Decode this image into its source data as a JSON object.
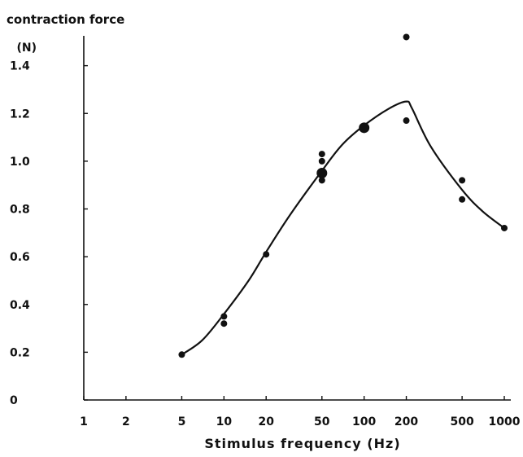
{
  "chart_data": {
    "type": "scatter",
    "title": "",
    "ylabel": "contraction force",
    "yunit": "(N)",
    "xlabel": "Stimulus frequency (Hz)",
    "xscale": "log",
    "xlim": [
      1,
      1000
    ],
    "ylim": [
      0,
      1.6
    ],
    "xticks": [
      1,
      2,
      5,
      10,
      20,
      50,
      100,
      200,
      500,
      1000
    ],
    "xtick_labels": [
      "1",
      "2",
      "5",
      "10",
      "20",
      "50",
      "100",
      "200",
      "500",
      "1000"
    ],
    "yticks": [
      0,
      0.2,
      0.4,
      0.6,
      0.8,
      1.0,
      1.2,
      1.4
    ],
    "ytick_labels": [
      "0",
      "0.2",
      "0.4",
      "0.6",
      "0.8",
      "1.0",
      "1.2",
      "1.4"
    ],
    "grid": false,
    "points": [
      {
        "x": 5,
        "y": 0.19
      },
      {
        "x": 10,
        "y": 0.35
      },
      {
        "x": 10,
        "y": 0.32
      },
      {
        "x": 20,
        "y": 0.61
      },
      {
        "x": 50,
        "y": 1.03
      },
      {
        "x": 50,
        "y": 1.0
      },
      {
        "x": 50,
        "y": 0.95,
        "large": true
      },
      {
        "x": 50,
        "y": 0.92
      },
      {
        "x": 100,
        "y": 1.14,
        "large": true
      },
      {
        "x": 200,
        "y": 1.52
      },
      {
        "x": 200,
        "y": 1.17
      },
      {
        "x": 500,
        "y": 0.92
      },
      {
        "x": 500,
        "y": 0.84
      },
      {
        "x": 1000,
        "y": 0.72
      }
    ],
    "fit_curve": [
      {
        "x": 5,
        "y": 0.19
      },
      {
        "x": 7,
        "y": 0.25
      },
      {
        "x": 10,
        "y": 0.36
      },
      {
        "x": 15,
        "y": 0.5
      },
      {
        "x": 20,
        "y": 0.62
      },
      {
        "x": 30,
        "y": 0.78
      },
      {
        "x": 50,
        "y": 0.96
      },
      {
        "x": 70,
        "y": 1.07
      },
      {
        "x": 100,
        "y": 1.15
      },
      {
        "x": 150,
        "y": 1.22
      },
      {
        "x": 200,
        "y": 1.25
      },
      {
        "x": 220,
        "y": 1.22
      },
      {
        "x": 300,
        "y": 1.06
      },
      {
        "x": 500,
        "y": 0.88
      },
      {
        "x": 700,
        "y": 0.79
      },
      {
        "x": 1000,
        "y": 0.72
      }
    ]
  }
}
